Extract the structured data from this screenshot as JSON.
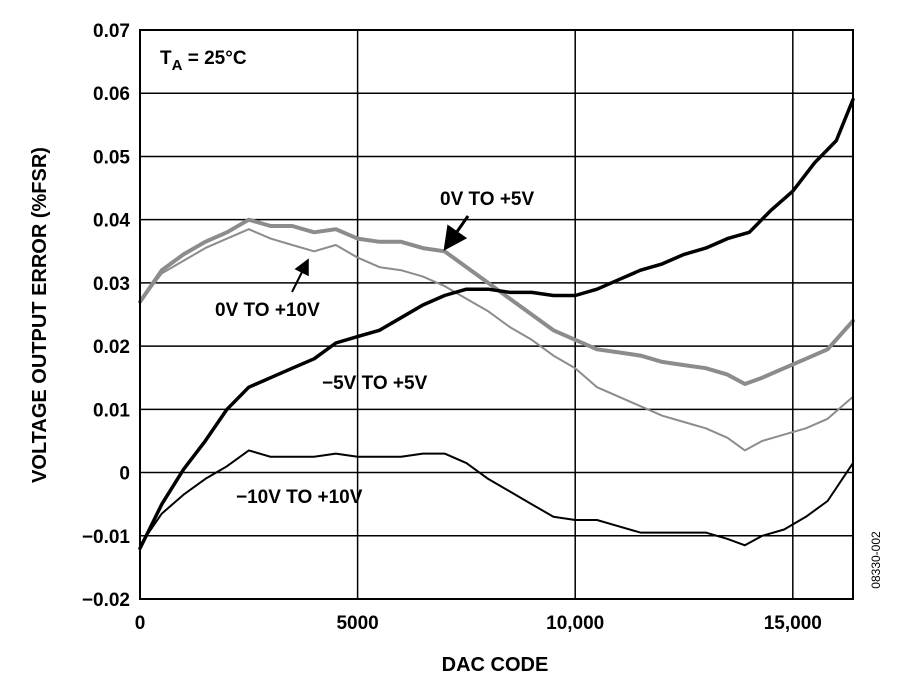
{
  "chart_data": {
    "type": "line",
    "xlabel": "DAC CODE",
    "ylabel": "VOLTAGE OUTPUT ERROR (%FSR)",
    "xlim": [
      0,
      16383
    ],
    "ylim": [
      -0.02,
      0.07
    ],
    "x_ticks": [
      0,
      5000,
      10000,
      15000
    ],
    "x_tick_labels": [
      "0",
      "5000",
      "10,000",
      "15,000"
    ],
    "y_ticks": [
      -0.02,
      -0.01,
      0,
      0.01,
      0.02,
      0.03,
      0.04,
      0.05,
      0.06,
      0.07
    ],
    "y_tick_labels": [
      "−0.02",
      "−0.01",
      "0",
      "0.01",
      "0.02",
      "0.03",
      "0.04",
      "0.05",
      "0.06",
      "0.07"
    ],
    "grid": true,
    "condition": {
      "prefix": "T",
      "subscript": "A",
      "suffix": " = 25°C"
    },
    "figure_id": "08330-002",
    "series": [
      {
        "name": "0V TO +5V",
        "color": "#8c8c8c",
        "width": 4,
        "x": [
          0,
          500,
          1000,
          1500,
          2000,
          2500,
          3000,
          3500,
          4000,
          4500,
          5000,
          5500,
          6000,
          6500,
          7000,
          7500,
          8000,
          8500,
          9000,
          9500,
          10000,
          10500,
          11000,
          11500,
          12000,
          12500,
          13000,
          13500,
          13900,
          14300,
          14800,
          15300,
          15800,
          16383
        ],
        "y": [
          0.027,
          0.032,
          0.0345,
          0.0365,
          0.038,
          0.04,
          0.039,
          0.039,
          0.038,
          0.0385,
          0.037,
          0.0365,
          0.0365,
          0.0355,
          0.035,
          0.0325,
          0.03,
          0.0275,
          0.025,
          0.0225,
          0.021,
          0.0195,
          0.019,
          0.0185,
          0.0175,
          0.017,
          0.0165,
          0.0155,
          0.014,
          0.015,
          0.0165,
          0.018,
          0.0195,
          0.024
        ]
      },
      {
        "name": "0V TO +10V",
        "color": "#8c8c8c",
        "width": 2,
        "x": [
          0,
          500,
          1000,
          1500,
          2000,
          2500,
          3000,
          3500,
          4000,
          4500,
          5000,
          5500,
          6000,
          6500,
          7000,
          7500,
          8000,
          8500,
          9000,
          9500,
          10000,
          10500,
          11000,
          11500,
          12000,
          12500,
          13000,
          13500,
          13900,
          14300,
          14800,
          15300,
          15800,
          16383
        ],
        "y": [
          0.027,
          0.0315,
          0.0335,
          0.0355,
          0.037,
          0.0385,
          0.037,
          0.036,
          0.035,
          0.036,
          0.034,
          0.0325,
          0.032,
          0.031,
          0.0295,
          0.0275,
          0.0255,
          0.023,
          0.021,
          0.0185,
          0.0165,
          0.0135,
          0.012,
          0.0105,
          0.009,
          0.008,
          0.007,
          0.0055,
          0.0035,
          0.005,
          0.006,
          0.007,
          0.0085,
          0.012
        ]
      },
      {
        "name": "−5V TO +5V",
        "color": "#000000",
        "width": 3.5,
        "x": [
          0,
          500,
          1000,
          1500,
          2000,
          2500,
          3000,
          3500,
          4000,
          4500,
          5000,
          5500,
          6000,
          6500,
          7000,
          7500,
          8000,
          8500,
          9000,
          9500,
          10000,
          10500,
          11000,
          11500,
          12000,
          12500,
          13000,
          13500,
          14000,
          14500,
          15000,
          15500,
          16000,
          16383
        ],
        "y": [
          -0.012,
          -0.005,
          0.0005,
          0.005,
          0.01,
          0.0135,
          0.015,
          0.0165,
          0.018,
          0.0205,
          0.0215,
          0.0225,
          0.0245,
          0.0265,
          0.028,
          0.029,
          0.029,
          0.0285,
          0.0285,
          0.028,
          0.028,
          0.029,
          0.0305,
          0.032,
          0.033,
          0.0345,
          0.0355,
          0.037,
          0.038,
          0.0415,
          0.0445,
          0.049,
          0.0525,
          0.059
        ]
      },
      {
        "name": "−10V TO +10V",
        "color": "#000000",
        "width": 2,
        "x": [
          0,
          500,
          1000,
          1500,
          2000,
          2500,
          3000,
          3500,
          4000,
          4500,
          5000,
          5500,
          6000,
          6500,
          7000,
          7500,
          8000,
          8500,
          9000,
          9500,
          10000,
          10500,
          11000,
          11500,
          12000,
          12500,
          13000,
          13500,
          13900,
          14300,
          14800,
          15300,
          15800,
          16383
        ],
        "y": [
          -0.0115,
          -0.0065,
          -0.0035,
          -0.001,
          0.001,
          0.0035,
          0.0025,
          0.0025,
          0.0025,
          0.003,
          0.0025,
          0.0025,
          0.0025,
          0.003,
          0.003,
          0.0015,
          -0.001,
          -0.003,
          -0.005,
          -0.007,
          -0.0075,
          -0.0075,
          -0.0085,
          -0.0095,
          -0.0095,
          -0.0095,
          -0.0095,
          -0.0105,
          -0.0115,
          -0.01,
          -0.009,
          -0.007,
          -0.0045,
          0.0015
        ]
      }
    ],
    "annotations": [
      {
        "text": "0V TO +5V",
        "series": "0V TO +5V"
      },
      {
        "text": "0V TO +10V",
        "series": "0V TO +10V"
      },
      {
        "text": "−5V TO +5V",
        "series": "−5V TO +5V"
      },
      {
        "text": "−10V TO +10V",
        "series": "−10V TO +10V"
      }
    ]
  }
}
